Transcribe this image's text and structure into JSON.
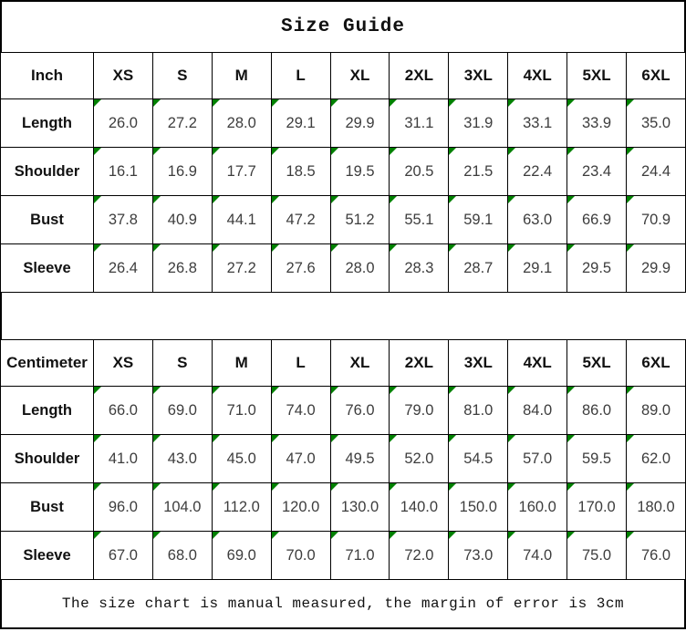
{
  "title": "Size Guide",
  "footer": {
    "note": "The size chart is manual measured, the margin of error is 3cm"
  },
  "colors": {
    "border": "#000000",
    "flag": "#008000",
    "number_text": "#3d3d3d",
    "heading_text": "#111111",
    "background": "#ffffff"
  },
  "icons": {
    "cell_corner_flag": "green triangle flag in top-left corner of each value cell"
  },
  "chart_data": [
    {
      "type": "table",
      "title": "Size Guide",
      "unit": "Inch",
      "columns": [
        "Inch",
        "XS",
        "S",
        "M",
        "L",
        "XL",
        "2XL",
        "3XL",
        "4XL",
        "5XL",
        "6XL"
      ],
      "rows": [
        {
          "label": "Length",
          "values": [
            "26.0",
            "27.2",
            "28.0",
            "29.1",
            "29.9",
            "31.1",
            "31.9",
            "33.1",
            "33.9",
            "35.0"
          ]
        },
        {
          "label": "Shoulder",
          "values": [
            "16.1",
            "16.9",
            "17.7",
            "18.5",
            "19.5",
            "20.5",
            "21.5",
            "22.4",
            "23.4",
            "24.4"
          ]
        },
        {
          "label": "Bust",
          "values": [
            "37.8",
            "40.9",
            "44.1",
            "47.2",
            "51.2",
            "55.1",
            "59.1",
            "63.0",
            "66.9",
            "70.9"
          ]
        },
        {
          "label": "Sleeve",
          "values": [
            "26.4",
            "26.8",
            "27.2",
            "27.6",
            "28.0",
            "28.3",
            "28.7",
            "29.1",
            "29.5",
            "29.9"
          ]
        }
      ]
    },
    {
      "type": "table",
      "title": "Size Guide",
      "unit": "Centimeter",
      "columns": [
        "Centimeter",
        "XS",
        "S",
        "M",
        "L",
        "XL",
        "2XL",
        "3XL",
        "4XL",
        "5XL",
        "6XL"
      ],
      "rows": [
        {
          "label": "Length",
          "values": [
            "66.0",
            "69.0",
            "71.0",
            "74.0",
            "76.0",
            "79.0",
            "81.0",
            "84.0",
            "86.0",
            "89.0"
          ]
        },
        {
          "label": "Shoulder",
          "values": [
            "41.0",
            "43.0",
            "45.0",
            "47.0",
            "49.5",
            "52.0",
            "54.5",
            "57.0",
            "59.5",
            "62.0"
          ]
        },
        {
          "label": "Bust",
          "values": [
            "96.0",
            "104.0",
            "112.0",
            "120.0",
            "130.0",
            "140.0",
            "150.0",
            "160.0",
            "170.0",
            "180.0"
          ]
        },
        {
          "label": "Sleeve",
          "values": [
            "67.0",
            "68.0",
            "69.0",
            "70.0",
            "71.0",
            "72.0",
            "73.0",
            "74.0",
            "75.0",
            "76.0"
          ]
        }
      ]
    }
  ]
}
